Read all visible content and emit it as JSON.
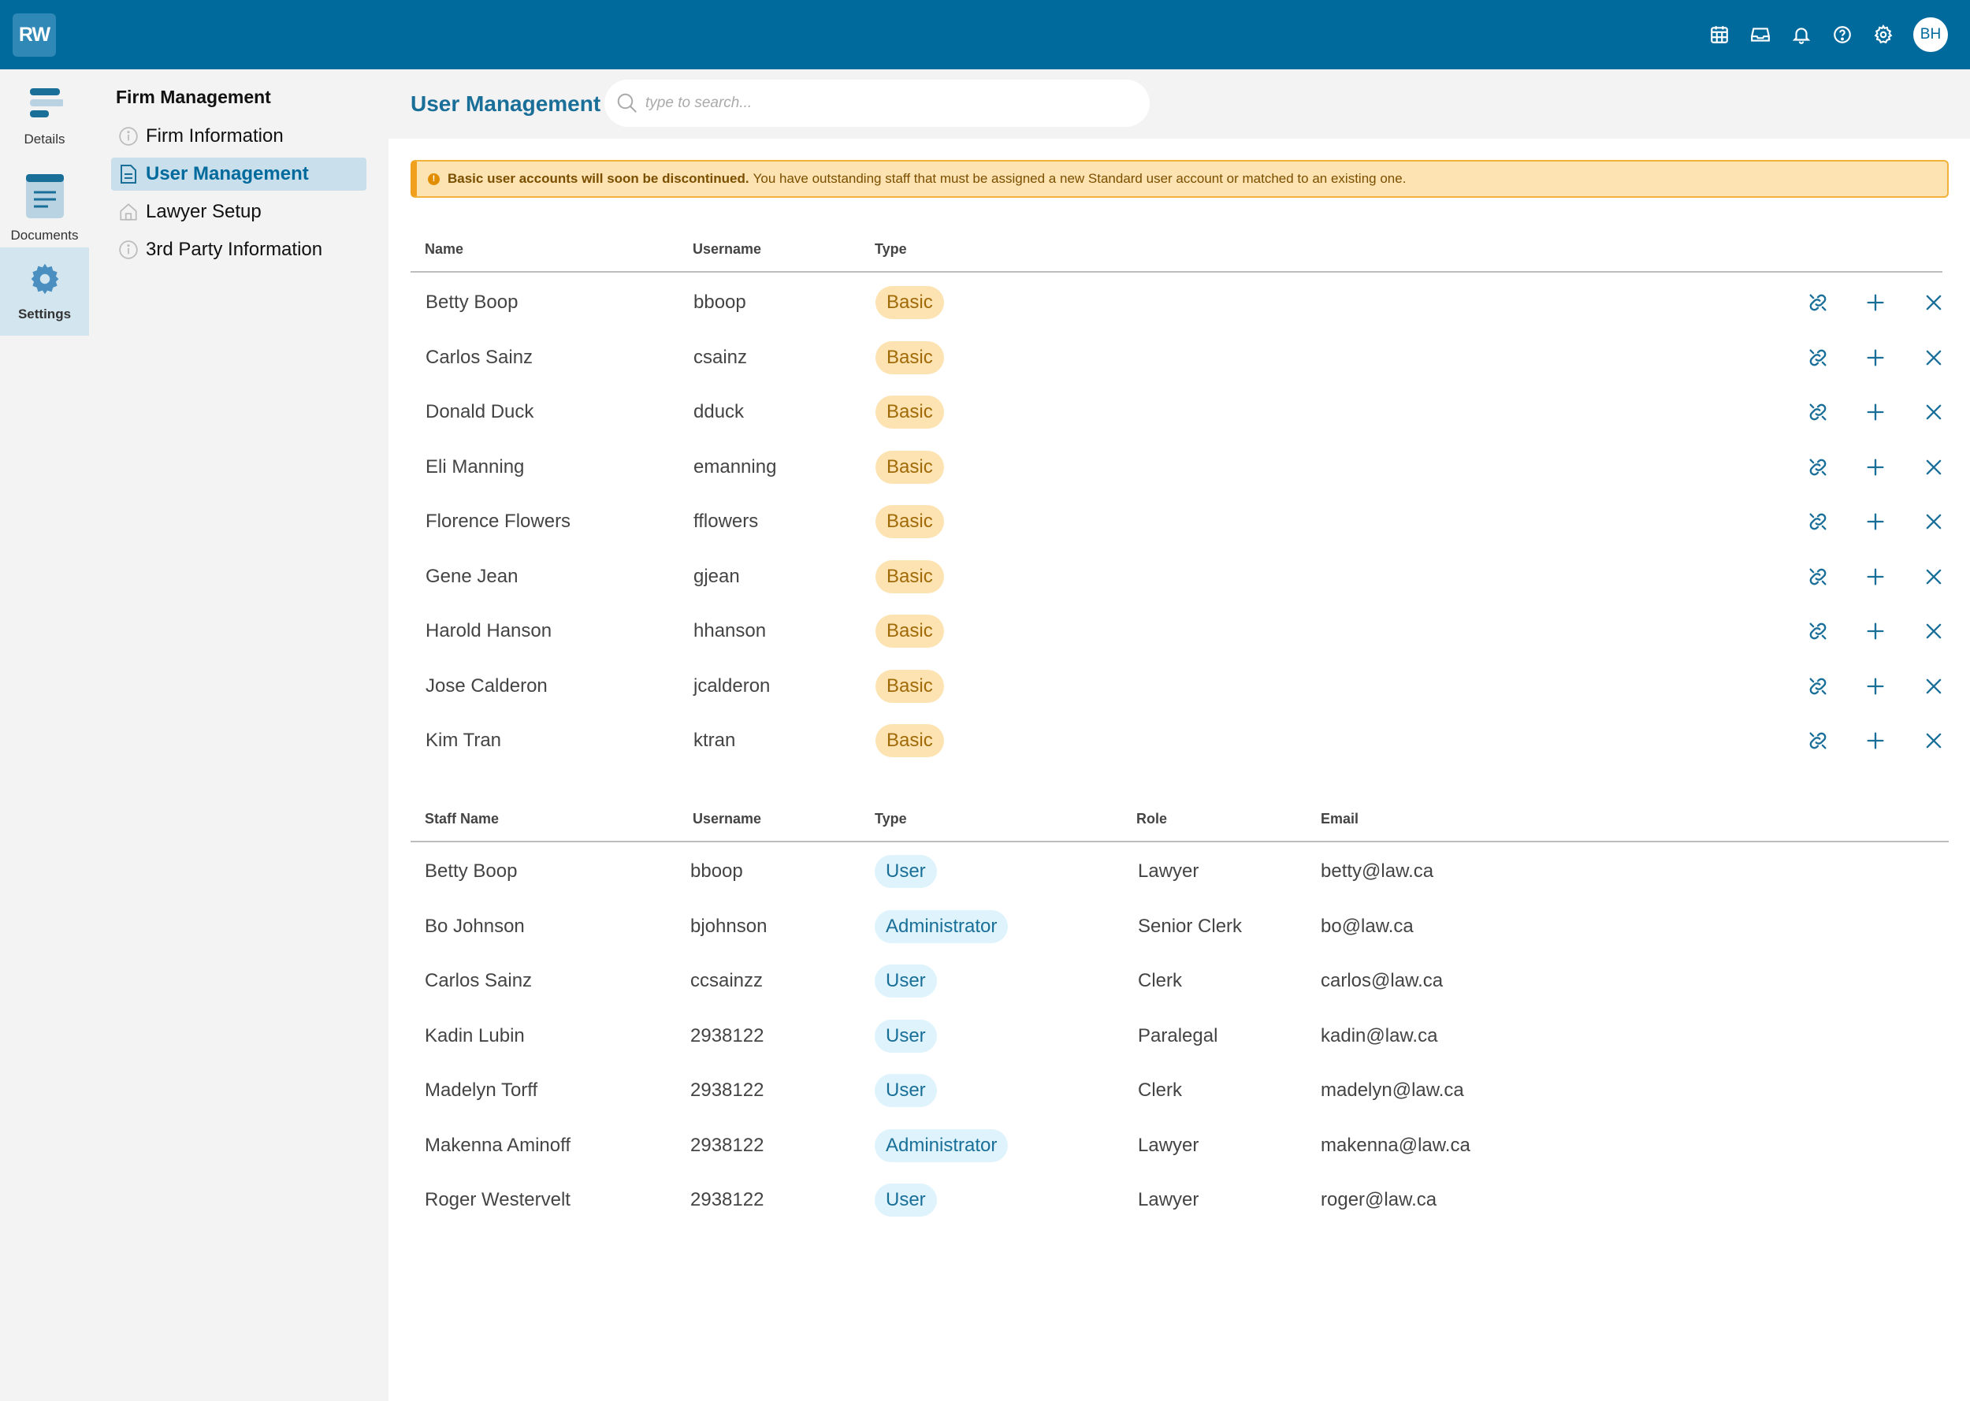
{
  "app": {
    "logo_text": "RW",
    "brand_color": "#006a9c"
  },
  "topbar": {
    "icons": [
      "calendar-icon",
      "inbox-icon",
      "bell-icon",
      "help-icon",
      "gear-icon"
    ],
    "avatar_initials": "BH"
  },
  "rail": {
    "items": [
      {
        "label": "Details",
        "icon": "details-icon"
      },
      {
        "label": "Documents",
        "icon": "documents-icon"
      },
      {
        "label": "Settings",
        "icon": "settings-gear-icon",
        "active": true
      }
    ]
  },
  "subnav": {
    "title": "Firm Management",
    "items": [
      {
        "label": "Firm Information",
        "icon": "info-icon"
      },
      {
        "label": "User Management",
        "icon": "document-icon",
        "active": true
      },
      {
        "label": "Lawyer Setup",
        "icon": "home-icon"
      },
      {
        "label": "3rd Party Information",
        "icon": "info-icon"
      }
    ]
  },
  "main": {
    "title": "User Management",
    "search_placeholder": "type to search..."
  },
  "alert": {
    "icon": "!",
    "bold": "Basic user accounts will soon be discontinued.",
    "text": "You have outstanding staff that must be assigned a new Standard user account or matched to an existing one."
  },
  "basic_table": {
    "headers": {
      "name": "Name",
      "username": "Username",
      "type": "Type"
    },
    "rows": [
      {
        "name": "Betty Boop",
        "username": "bboop",
        "type": "Basic"
      },
      {
        "name": "Carlos Sainz",
        "username": "csainz",
        "type": "Basic"
      },
      {
        "name": "Donald Duck",
        "username": "dduck",
        "type": "Basic"
      },
      {
        "name": "Eli Manning",
        "username": "emanning",
        "type": "Basic"
      },
      {
        "name": "Florence Flowers",
        "username": "fflowers",
        "type": "Basic"
      },
      {
        "name": "Gene Jean",
        "username": "gjean",
        "type": "Basic"
      },
      {
        "name": "Harold Hanson",
        "username": "hhanson",
        "type": "Basic"
      },
      {
        "name": "Jose Calderon",
        "username": "jcalderon",
        "type": "Basic"
      },
      {
        "name": "Kim Tran",
        "username": "ktran",
        "type": "Basic"
      }
    ],
    "row_actions": [
      "link-icon",
      "plus-icon",
      "close-icon"
    ]
  },
  "staff_table": {
    "headers": {
      "name": "Staff Name",
      "username": "Username",
      "type": "Type",
      "role": "Role",
      "email": "Email"
    },
    "rows": [
      {
        "name": "Betty Boop",
        "username": "bboop",
        "type": "User",
        "role": "Lawyer",
        "email": "betty@law.ca"
      },
      {
        "name": "Bo Johnson",
        "username": "bjohnson",
        "type": "Administrator",
        "role": "Senior Clerk",
        "email": "bo@law.ca"
      },
      {
        "name": "Carlos Sainz",
        "username": "ccsainzz",
        "type": "User",
        "role": "Clerk",
        "email": "carlos@law.ca"
      },
      {
        "name": "Kadin Lubin",
        "username": "2938122",
        "type": "User",
        "role": "Paralegal",
        "email": "kadin@law.ca"
      },
      {
        "name": "Madelyn Torff",
        "username": "2938122",
        "type": "User",
        "role": "Clerk",
        "email": "madelyn@law.ca"
      },
      {
        "name": "Makenna Aminoff",
        "username": "2938122",
        "type": "Administrator",
        "role": "Lawyer",
        "email": "makenna@law.ca"
      },
      {
        "name": "Roger Westervelt",
        "username": "2938122",
        "type": "User",
        "role": "Lawyer",
        "email": "roger@law.ca"
      }
    ]
  }
}
